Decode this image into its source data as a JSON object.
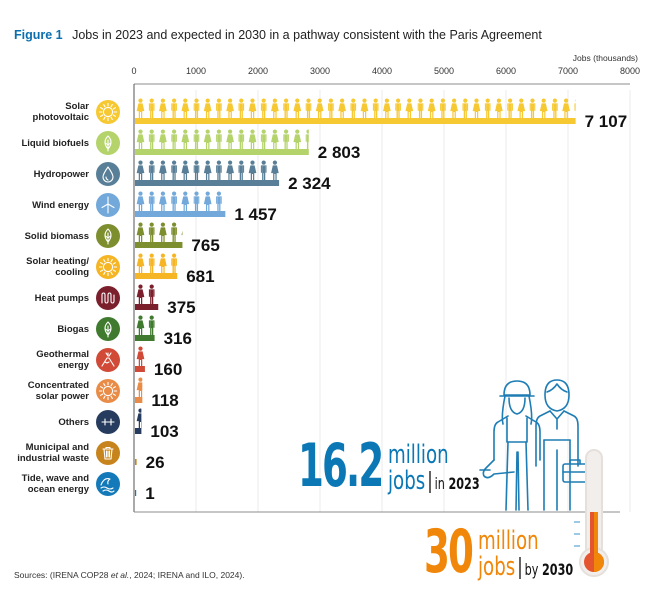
{
  "figure": {
    "number": "Figure 1",
    "title": "Jobs in 2023 and expected in 2030 in a pathway consistent with the Paris Agreement",
    "sources_prefix": "Sources: (IRENA COP28 ",
    "sources_italic": "et al.",
    "sources_suffix": ", 2024; IRENA and ILO, 2024)."
  },
  "chart_data": {
    "type": "bar",
    "orientation": "horizontal",
    "title": "Jobs in 2023 and expected in 2030 in a pathway consistent with the Paris Agreement",
    "xlabel": "Jobs (thousands)",
    "ylabel": "",
    "xlim": [
      0,
      8000
    ],
    "xticks": [
      0,
      1000,
      2000,
      3000,
      4000,
      5000,
      6000,
      7000,
      8000
    ],
    "xtick_labels": [
      "0",
      "1000",
      "2000",
      "3000",
      "4000",
      "5000",
      "6000",
      "7000",
      "8000"
    ],
    "grid": true,
    "categories": [
      "Solar photovoltaic",
      "Liquid biofuels",
      "Hydropower",
      "Wind energy",
      "Solid biomass",
      "Solar heating/ cooling",
      "Heat pumps",
      "Biogas",
      "Geothermal energy",
      "Concentrated solar power",
      "Others",
      "Municipal and industrial waste",
      "Tide, wave and ocean energy"
    ],
    "values": [
      7107,
      2803,
      2324,
      1457,
      765,
      681,
      375,
      316,
      160,
      118,
      103,
      26,
      1
    ],
    "value_labels": [
      "7 107",
      "2 803",
      "2 324",
      "1 457",
      "765",
      "681",
      "375",
      "316",
      "160",
      "118",
      "103",
      "26",
      "1"
    ],
    "label_lines": [
      [
        "Solar",
        "photovoltaic"
      ],
      [
        "Liquid biofuels"
      ],
      [
        "Hydropower"
      ],
      [
        "Wind energy"
      ],
      [
        "Solid biomass"
      ],
      [
        "Solar heating/",
        "cooling"
      ],
      [
        "Heat pumps"
      ],
      [
        "Biogas"
      ],
      [
        "Geothermal",
        "energy"
      ],
      [
        "Concentrated",
        "solar power"
      ],
      [
        "Others"
      ],
      [
        "Municipal and",
        "industrial waste"
      ],
      [
        "Tide, wave and",
        "ocean energy"
      ]
    ],
    "colors": [
      "#f6c832",
      "#b5d36b",
      "#587f97",
      "#72a8da",
      "#7d8e2f",
      "#f5b525",
      "#7a1f2b",
      "#3f7a2e",
      "#d04a37",
      "#e98c47",
      "#263c5e",
      "#c7841d",
      "#1479b8"
    ],
    "icons": [
      "sun-icon",
      "leaf-icon",
      "water-drop-icon",
      "wind-turbine-icon",
      "leaf-icon",
      "sun-icon",
      "heat-coil-icon",
      "leaf-icon",
      "volcano-icon",
      "sun-icon",
      "plus-plus-icon",
      "trash-bin-icon",
      "wave-icon"
    ],
    "annotations": [
      {
        "value": "16.2",
        "unit": "million",
        "noun": "jobs",
        "when_prefix": "in",
        "year": "2023",
        "color": "#0b78b5"
      },
      {
        "value": "30",
        "unit": "million",
        "noun": "jobs",
        "when_prefix": "by",
        "year": "2030",
        "color": "#f0870a"
      }
    ]
  },
  "illustration": {
    "workers": [
      "female-worker-hardhat-wrench",
      "male-worker-briefcase"
    ],
    "thermometer": "thermometer-rising"
  }
}
